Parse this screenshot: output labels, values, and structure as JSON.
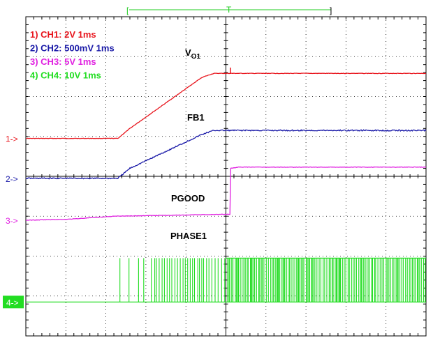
{
  "chart_data": {
    "type": "line",
    "time_per_div_ms": 1,
    "divisions_x": 10,
    "divisions_y": 8,
    "x_unit": "ms",
    "xlim": [
      0,
      10
    ],
    "ylim_div": [
      0,
      8
    ],
    "grid": true,
    "channels": [
      {
        "name": "1) CH1: 2V 1ms",
        "marker": "1->",
        "color": "#e8141c",
        "scale_per_div": "2V",
        "ground_div": 4.95
      },
      {
        "name": "2) CH2: 500mV 1ms",
        "marker": "2->",
        "color": "#1a1aa8",
        "scale_per_div": "500mV",
        "ground_div": 3.95
      },
      {
        "name": "3) CH3: 5V 1ms",
        "marker": "3->",
        "color": "#e020e0",
        "scale_per_div": "5V",
        "ground_div": 2.9
      },
      {
        "name": "4) CH4: 10V 1ms",
        "marker": "4->",
        "color": "#22dd22",
        "scale_per_div": "10V",
        "ground_div": 0.85
      }
    ],
    "series": [
      {
        "name": "VO1",
        "channel": 1,
        "x": [
          0,
          2.3,
          2.6,
          4.4,
          4.7,
          10
        ],
        "y": [
          4.95,
          4.95,
          5.2,
          6.48,
          6.58,
          6.58
        ]
      },
      {
        "name": "FB1",
        "channel": 2,
        "x": [
          0,
          2.3,
          2.6,
          4.4,
          4.7,
          10
        ],
        "y": [
          3.95,
          3.95,
          4.2,
          5.05,
          5.15,
          5.15
        ]
      },
      {
        "name": "PGOOD",
        "channel": 3,
        "x": [
          0,
          1.0,
          2.2,
          5.1,
          5.12,
          5.3,
          10
        ],
        "y": [
          2.9,
          2.92,
          3.0,
          3.05,
          4.2,
          4.23,
          4.23
        ]
      },
      {
        "name": "PHASE1",
        "channel": 4,
        "x": [
          0,
          2.35,
          10
        ],
        "y": [
          0.85,
          0.85,
          0.85
        ],
        "switching_start_ms": 2.35,
        "switching_high_div": 1.95,
        "switching_low_div": 0.85
      }
    ],
    "annotations": {
      "vo1_label": "V",
      "vo1_sub": "O1",
      "fb1_label": "FB1",
      "pgood_label": "PGOOD",
      "phase1_label": "PHASE1"
    },
    "trigger_marker": "T",
    "memory_bar_bracket_left": "[",
    "memory_bar_bracket_right": "]"
  }
}
